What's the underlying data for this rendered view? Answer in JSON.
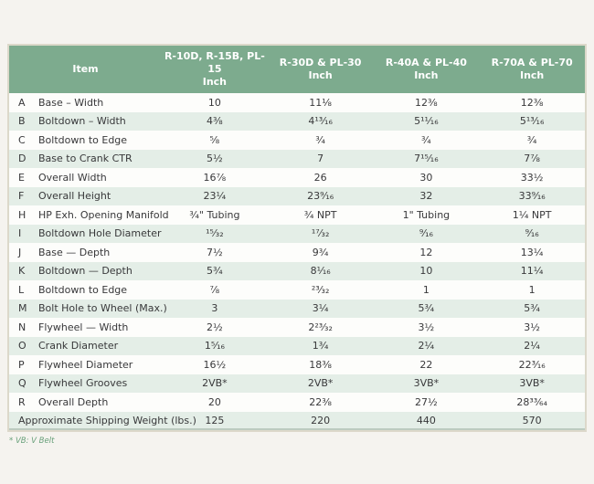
{
  "footnote": "* VB: V Belt",
  "table": {
    "columns": [
      {
        "label": "Item",
        "sub": ""
      },
      {
        "label": "R-10D, R-15B, PL-15",
        "sub": "Inch"
      },
      {
        "label": "R-30D & PL-30",
        "sub": "Inch"
      },
      {
        "label": "R-40A & PL-40",
        "sub": "Inch"
      },
      {
        "label": "R-70A & PL-70",
        "sub": "Inch"
      }
    ],
    "rows": [
      {
        "letter": "A",
        "item": "Base – Width",
        "values": [
          "10",
          "11⅛",
          "12⅜",
          "12⅜"
        ]
      },
      {
        "letter": "B",
        "item": "Boltdown – Width",
        "values": [
          "4⅜",
          "4¹³⁄₁₆",
          "5¹¹⁄₁₆",
          "5¹³⁄₁₆"
        ]
      },
      {
        "letter": "C",
        "item": "Boltdown to Edge",
        "values": [
          "⅝",
          "¾",
          "¾",
          "¾"
        ]
      },
      {
        "letter": "D",
        "item": "Base to Crank CTR",
        "values": [
          "5½",
          "7",
          "7¹⁵⁄₁₆",
          "7⅞"
        ]
      },
      {
        "letter": "E",
        "item": "Overall Width",
        "values": [
          "16⅞",
          "26",
          "30",
          "33½"
        ]
      },
      {
        "letter": "F",
        "item": "Overall Height",
        "values": [
          "23¼",
          "23⁹⁄₁₆",
          "32",
          "33⁹⁄₁₆"
        ]
      },
      {
        "letter": "H",
        "item": "HP Exh. Opening Manifold",
        "values": [
          "¾\" Tubing",
          "¾ NPT",
          "1\" Tubing",
          "1¼ NPT"
        ]
      },
      {
        "letter": "I",
        "item": "Boltdown Hole Diameter",
        "values": [
          "¹⁵⁄₃₂",
          "¹⁷⁄₃₂",
          "⁹⁄₁₆",
          "⁹⁄₁₆"
        ]
      },
      {
        "letter": "J",
        "item": "Base — Depth",
        "values": [
          "7½",
          "9¾",
          "12",
          "13¼"
        ]
      },
      {
        "letter": "K",
        "item": "Boltdown — Depth",
        "values": [
          "5¾",
          "8¹⁄₁₆",
          "10",
          "11¼"
        ]
      },
      {
        "letter": "L",
        "item": "Boltdown to Edge",
        "values": [
          "⅞",
          "²³⁄₃₂",
          "1",
          "1"
        ]
      },
      {
        "letter": "M",
        "item": "Bolt Hole to Wheel (Max.)",
        "values": [
          "3",
          "3¼",
          "5¾",
          "5¾"
        ]
      },
      {
        "letter": "N",
        "item": "Flywheel — Width",
        "values": [
          "2½",
          "2²³⁄₃₂",
          "3½",
          "3½"
        ]
      },
      {
        "letter": "O",
        "item": "Crank Diameter",
        "values": [
          "1⁵⁄₁₆",
          "1¾",
          "2¼",
          "2¼"
        ]
      },
      {
        "letter": "P",
        "item": "Flywheel Diameter",
        "values": [
          "16½",
          "18⅜",
          "22",
          "22³⁄₁₆"
        ]
      },
      {
        "letter": "Q",
        "item": "Flywheel Grooves",
        "values": [
          "2VB*",
          "2VB*",
          "3VB*",
          "3VB*"
        ]
      },
      {
        "letter": "R",
        "item": "Overall Depth",
        "values": [
          "20",
          "22⅜",
          "27½",
          "28³³⁄₆₄"
        ]
      },
      {
        "letter": "",
        "item": "Approximate Shipping Weight (lbs.)",
        "values": [
          "125",
          "220",
          "440",
          "570"
        ]
      }
    ]
  },
  "colors": {
    "header_green": "#7dab8e",
    "row_alt_green": "#e4eee7",
    "border_tan": "#dcd8ca",
    "footnote_green": "#68a07a",
    "text": "#38383a"
  }
}
